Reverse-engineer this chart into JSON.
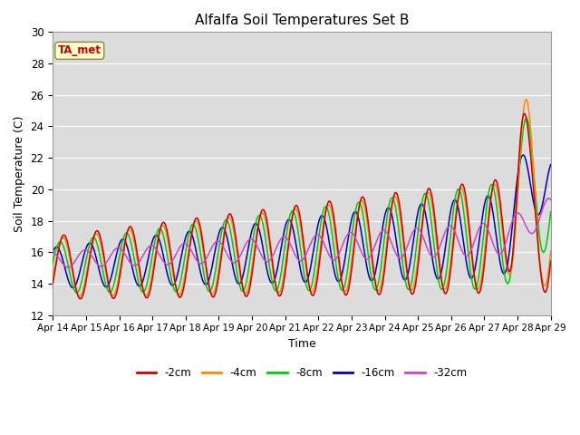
{
  "title": "Alfalfa Soil Temperatures Set B",
  "xlabel": "Time",
  "ylabel": "Soil Temperature (C)",
  "ylim": [
    12,
    30
  ],
  "xlim": [
    0,
    15
  ],
  "xtick_labels": [
    "Apr 14",
    "Apr 15",
    "Apr 16",
    "Apr 17",
    "Apr 18",
    "Apr 19",
    "Apr 20",
    "Apr 21",
    "Apr 22",
    "Apr 23",
    "Apr 24",
    "Apr 25",
    "Apr 26",
    "Apr 27",
    "Apr 28",
    "Apr 29"
  ],
  "ytick_values": [
    12,
    14,
    16,
    18,
    20,
    22,
    24,
    26,
    28,
    30
  ],
  "colors": {
    "-2cm": "#cc0000",
    "-4cm": "#ff8800",
    "-8cm": "#00cc00",
    "-16cm": "#0000bb",
    "-32cm": "#cc44cc"
  },
  "annotation_text": "TA_met",
  "annotation_bg": "#ffffcc",
  "annotation_border": "#cc0000",
  "fig_bg": "#e8e8e8",
  "plot_bg": "#dcdcdc",
  "grid_color": "#ffffff",
  "legend_labels": [
    "-2cm",
    "-4cm",
    "-8cm",
    "-16cm",
    "-32cm"
  ]
}
